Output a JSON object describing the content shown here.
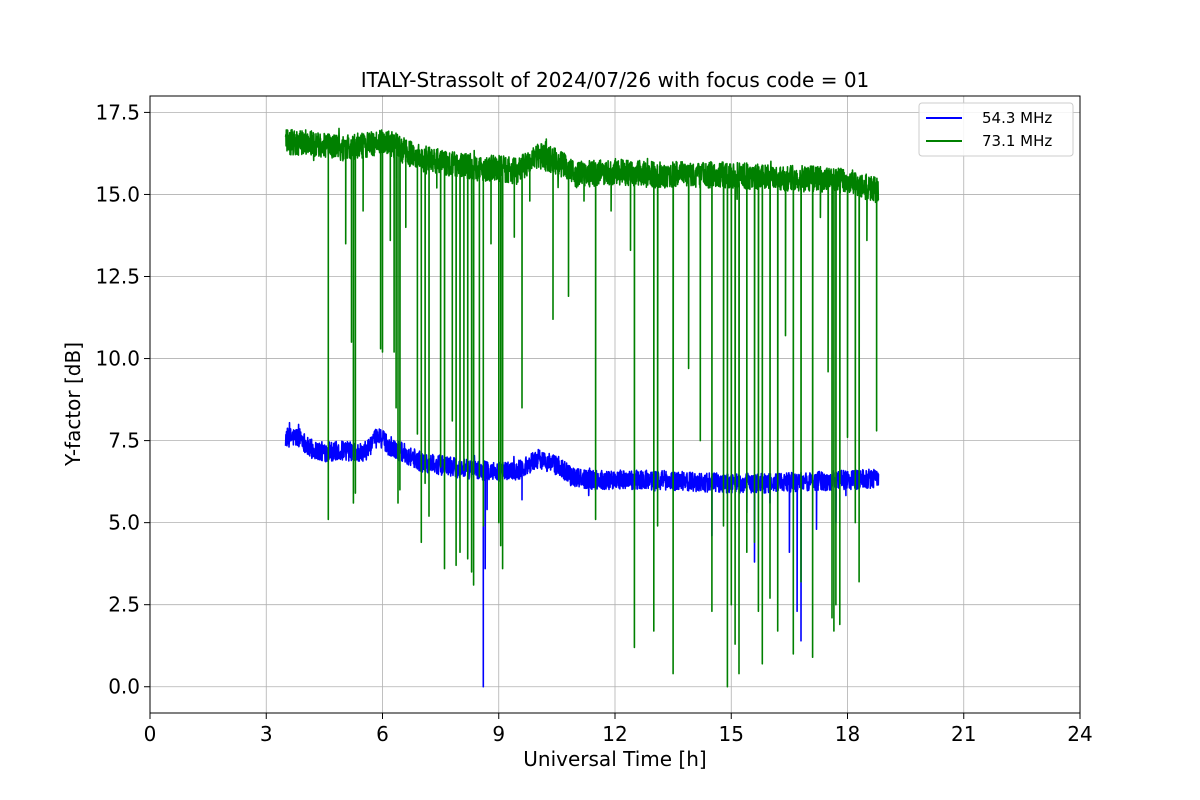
{
  "chart_data": {
    "type": "line",
    "title": "ITALY-Strassolt of 2024/07/26 with focus code = 01",
    "xlabel": "Universal Time [h]",
    "ylabel": "Y-factor [dB]",
    "xlim": [
      0,
      24
    ],
    "ylim": [
      -0.8,
      18
    ],
    "xticks": [
      0,
      3,
      6,
      9,
      12,
      15,
      18,
      21,
      24
    ],
    "xtick_labels": [
      "0",
      "3",
      "6",
      "9",
      "12",
      "15",
      "18",
      "21",
      "24"
    ],
    "yticks": [
      0.0,
      2.5,
      5.0,
      7.5,
      10.0,
      12.5,
      15.0,
      17.5
    ],
    "ytick_labels": [
      "0.0",
      "2.5",
      "5.0",
      "7.5",
      "10.0",
      "12.5",
      "15.0",
      "17.5"
    ],
    "grid": true,
    "legend_position": "top-right",
    "series": [
      {
        "name": "54.3 MHz",
        "color": "#0000ff",
        "noise": 0.3,
        "x": [
          3.5,
          3.9,
          4.1,
          4.5,
          5.0,
          5.5,
          5.9,
          6.2,
          6.6,
          7.0,
          7.5,
          8.0,
          8.5,
          9.0,
          9.5,
          10.0,
          10.5,
          11.0,
          11.5,
          12.0,
          13.0,
          14.0,
          15.0,
          15.5,
          16.0,
          17.0,
          18.0,
          18.8
        ],
        "y": [
          7.6,
          7.6,
          7.25,
          7.15,
          7.2,
          7.1,
          7.65,
          7.3,
          7.1,
          6.85,
          6.75,
          6.65,
          6.6,
          6.55,
          6.6,
          6.95,
          6.75,
          6.35,
          6.3,
          6.3,
          6.3,
          6.25,
          6.2,
          6.2,
          6.2,
          6.25,
          6.3,
          6.35
        ],
        "dips": [
          {
            "x": 8.6,
            "y": 0.0
          },
          {
            "x": 8.65,
            "y": 3.6
          },
          {
            "x": 8.7,
            "y": 5.4
          },
          {
            "x": 9.6,
            "y": 5.7
          },
          {
            "x": 14.5,
            "y": 4.6
          },
          {
            "x": 15.4,
            "y": 5.3
          },
          {
            "x": 15.6,
            "y": 3.8
          },
          {
            "x": 16.0,
            "y": 5.6
          },
          {
            "x": 16.5,
            "y": 4.1
          },
          {
            "x": 16.7,
            "y": 2.3
          },
          {
            "x": 16.8,
            "y": 1.4
          },
          {
            "x": 17.2,
            "y": 4.8
          },
          {
            "x": 17.7,
            "y": 5.0
          }
        ]
      },
      {
        "name": "73.1 MHz",
        "color": "#008000",
        "noise": 0.4,
        "x": [
          3.5,
          4.0,
          4.5,
          5.0,
          5.5,
          5.9,
          6.3,
          6.6,
          7.0,
          7.5,
          8.0,
          8.5,
          9.0,
          9.5,
          10.0,
          10.5,
          11.0,
          12.0,
          13.0,
          14.0,
          15.0,
          16.0,
          17.0,
          18.0,
          18.8
        ],
        "y": [
          16.6,
          16.6,
          16.5,
          16.4,
          16.5,
          16.6,
          16.5,
          16.3,
          16.1,
          16.0,
          15.9,
          15.8,
          15.8,
          15.7,
          16.2,
          16.0,
          15.6,
          15.7,
          15.6,
          15.6,
          15.6,
          15.5,
          15.5,
          15.4,
          15.1
        ],
        "dips": [
          {
            "x": 4.6,
            "y": 5.1
          },
          {
            "x": 5.05,
            "y": 13.5
          },
          {
            "x": 5.2,
            "y": 10.5
          },
          {
            "x": 5.25,
            "y": 5.6
          },
          {
            "x": 5.3,
            "y": 5.9
          },
          {
            "x": 5.5,
            "y": 14.5
          },
          {
            "x": 5.95,
            "y": 10.3
          },
          {
            "x": 6.0,
            "y": 10.2
          },
          {
            "x": 6.2,
            "y": 13.6
          },
          {
            "x": 6.3,
            "y": 10.2
          },
          {
            "x": 6.35,
            "y": 8.5
          },
          {
            "x": 6.4,
            "y": 5.6
          },
          {
            "x": 6.45,
            "y": 6.0
          },
          {
            "x": 6.6,
            "y": 14.0
          },
          {
            "x": 6.9,
            "y": 7.7
          },
          {
            "x": 7.0,
            "y": 4.4
          },
          {
            "x": 7.1,
            "y": 6.2
          },
          {
            "x": 7.2,
            "y": 5.2
          },
          {
            "x": 7.4,
            "y": 15.2
          },
          {
            "x": 7.5,
            "y": 6.7
          },
          {
            "x": 7.6,
            "y": 3.6
          },
          {
            "x": 7.8,
            "y": 8.1
          },
          {
            "x": 7.9,
            "y": 3.7
          },
          {
            "x": 8.0,
            "y": 4.1
          },
          {
            "x": 8.1,
            "y": 6.6
          },
          {
            "x": 8.2,
            "y": 3.9
          },
          {
            "x": 8.3,
            "y": 3.5
          },
          {
            "x": 8.35,
            "y": 3.1
          },
          {
            "x": 8.5,
            "y": 6.4
          },
          {
            "x": 8.6,
            "y": 4.9
          },
          {
            "x": 8.8,
            "y": 13.5
          },
          {
            "x": 9.0,
            "y": 5.0
          },
          {
            "x": 9.05,
            "y": 4.3
          },
          {
            "x": 9.1,
            "y": 3.6
          },
          {
            "x": 9.4,
            "y": 13.7
          },
          {
            "x": 9.6,
            "y": 8.5
          },
          {
            "x": 9.8,
            "y": 14.8
          },
          {
            "x": 10.4,
            "y": 11.2
          },
          {
            "x": 10.8,
            "y": 11.9
          },
          {
            "x": 11.2,
            "y": 14.8
          },
          {
            "x": 11.5,
            "y": 5.1
          },
          {
            "x": 11.9,
            "y": 14.5
          },
          {
            "x": 12.4,
            "y": 13.3
          },
          {
            "x": 12.5,
            "y": 1.2
          },
          {
            "x": 13.0,
            "y": 1.7
          },
          {
            "x": 13.1,
            "y": 4.9
          },
          {
            "x": 13.5,
            "y": 0.4
          },
          {
            "x": 13.9,
            "y": 9.7
          },
          {
            "x": 14.2,
            "y": 7.5
          },
          {
            "x": 14.5,
            "y": 2.3
          },
          {
            "x": 14.8,
            "y": 4.9
          },
          {
            "x": 14.9,
            "y": 0.0
          },
          {
            "x": 15.0,
            "y": 2.5
          },
          {
            "x": 15.1,
            "y": 1.3
          },
          {
            "x": 15.2,
            "y": 0.4
          },
          {
            "x": 15.4,
            "y": 4.1
          },
          {
            "x": 15.6,
            "y": 4.4
          },
          {
            "x": 15.7,
            "y": 2.3
          },
          {
            "x": 15.8,
            "y": 0.7
          },
          {
            "x": 16.0,
            "y": 2.7
          },
          {
            "x": 16.2,
            "y": 1.7
          },
          {
            "x": 16.4,
            "y": 10.7
          },
          {
            "x": 16.6,
            "y": 1.0
          },
          {
            "x": 16.8,
            "y": 3.2
          },
          {
            "x": 17.1,
            "y": 0.9
          },
          {
            "x": 17.3,
            "y": 14.3
          },
          {
            "x": 17.5,
            "y": 9.6
          },
          {
            "x": 17.6,
            "y": 2.1
          },
          {
            "x": 17.65,
            "y": 1.7
          },
          {
            "x": 17.7,
            "y": 2.5
          },
          {
            "x": 17.8,
            "y": 1.9
          },
          {
            "x": 18.0,
            "y": 7.6
          },
          {
            "x": 18.2,
            "y": 5.0
          },
          {
            "x": 18.3,
            "y": 3.2
          },
          {
            "x": 18.5,
            "y": 13.6
          },
          {
            "x": 18.75,
            "y": 7.8
          }
        ]
      }
    ]
  }
}
